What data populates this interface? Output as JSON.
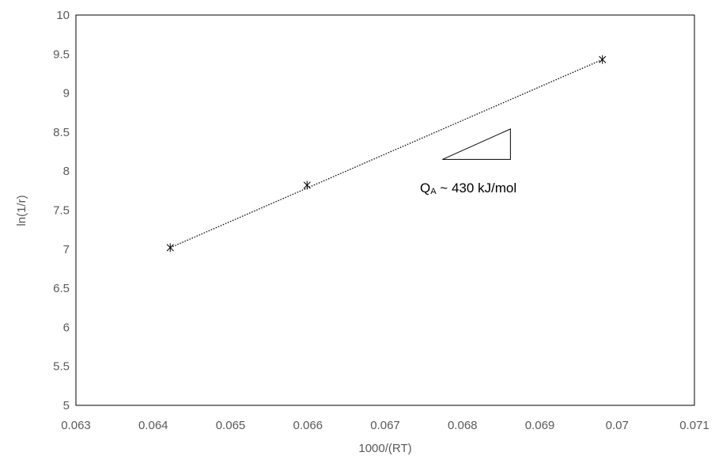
{
  "chart_data": {
    "type": "scatter",
    "title": "",
    "xlabel": "1000/(RT)",
    "ylabel": "ln(1/r)",
    "xlim": [
      0.063,
      0.071
    ],
    "ylim": [
      5,
      10
    ],
    "xticks": [
      "0.063",
      "0.064",
      "0.065",
      "0.066",
      "0.067",
      "0.068",
      "0.069",
      "0.07",
      "0.071"
    ],
    "yticks": [
      "5",
      "5.5",
      "6",
      "6.5",
      "7",
      "7.5",
      "8",
      "8.5",
      "9",
      "9.5",
      "10"
    ],
    "grid": false,
    "legend": "none",
    "series": [
      {
        "x": [
          0.06422,
          0.06599,
          0.06981
        ],
        "y": [
          7.02,
          7.82,
          9.43
        ],
        "marker": "asterisk",
        "color": "#000000"
      }
    ],
    "trendline": {
      "style": "dotted",
      "color": "#000000",
      "x": [
        0.06422,
        0.06981
      ],
      "y": [
        7.02,
        9.43
      ]
    },
    "annotation": {
      "main": "Q",
      "subscript": "A",
      "rest": " ~ 430 kJ/mol"
    },
    "slope_triangle": {
      "x": [
        0.06774,
        0.06862
      ],
      "y": [
        8.15,
        8.54
      ]
    }
  }
}
